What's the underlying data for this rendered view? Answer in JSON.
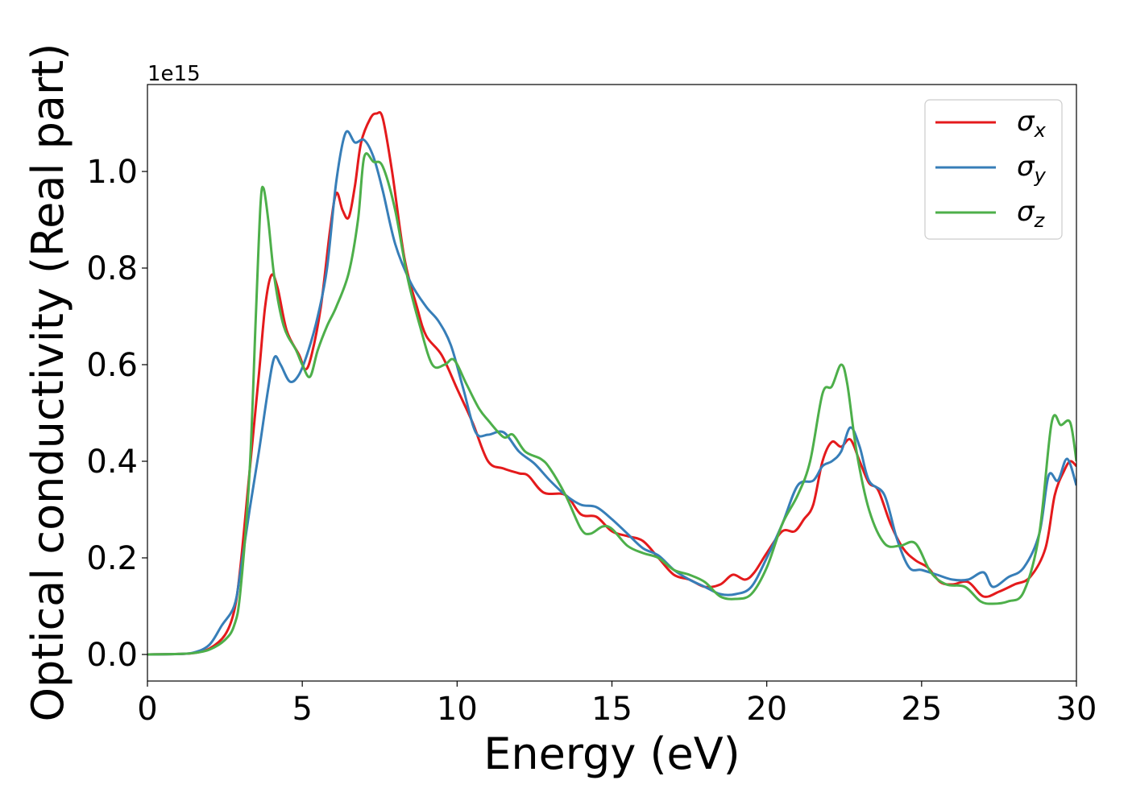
{
  "chart_data": {
    "type": "line",
    "xlabel": "Energy (eV)",
    "ylabel": "Optical conductivity (Real part)",
    "y_offset_label": "1e15",
    "xlim": [
      0,
      30
    ],
    "ylim": [
      -0.055,
      1.18
    ],
    "x_ticks": [
      0,
      5,
      10,
      15,
      20,
      25,
      30
    ],
    "y_ticks": [
      0.0,
      0.2,
      0.4,
      0.6,
      0.8,
      1.0
    ],
    "x_tick_labels": [
      "0",
      "5",
      "10",
      "15",
      "20",
      "25",
      "30"
    ],
    "y_tick_labels": [
      "0.0",
      "0.2",
      "0.4",
      "0.6",
      "0.8",
      "1.0"
    ],
    "grid": false,
    "legend_position": "top-right",
    "series": [
      {
        "name": "σx",
        "symbol": "σ",
        "subscript": "x",
        "color": "#e41a1c",
        "points": [
          [
            0,
            0
          ],
          [
            1,
            0.001
          ],
          [
            1.5,
            0.003
          ],
          [
            2,
            0.012
          ],
          [
            2.5,
            0.04
          ],
          [
            2.8,
            0.09
          ],
          [
            3,
            0.18
          ],
          [
            3.3,
            0.38
          ],
          [
            3.6,
            0.58
          ],
          [
            3.8,
            0.72
          ],
          [
            4.0,
            0.785
          ],
          [
            4.2,
            0.76
          ],
          [
            4.5,
            0.67
          ],
          [
            4.9,
            0.62
          ],
          [
            5.1,
            0.59
          ],
          [
            5.3,
            0.62
          ],
          [
            5.6,
            0.72
          ],
          [
            5.9,
            0.88
          ],
          [
            6.1,
            0.955
          ],
          [
            6.3,
            0.92
          ],
          [
            6.5,
            0.905
          ],
          [
            6.7,
            0.97
          ],
          [
            6.9,
            1.06
          ],
          [
            7.2,
            1.11
          ],
          [
            7.4,
            1.12
          ],
          [
            7.6,
            1.11
          ],
          [
            7.9,
            1.0
          ],
          [
            8.3,
            0.82
          ],
          [
            8.7,
            0.72
          ],
          [
            9.0,
            0.66
          ],
          [
            9.5,
            0.62
          ],
          [
            10,
            0.55
          ],
          [
            10.5,
            0.48
          ],
          [
            11,
            0.4
          ],
          [
            11.5,
            0.385
          ],
          [
            12,
            0.375
          ],
          [
            12.3,
            0.37
          ],
          [
            12.8,
            0.335
          ],
          [
            13.5,
            0.33
          ],
          [
            14,
            0.29
          ],
          [
            14.5,
            0.285
          ],
          [
            15,
            0.255
          ],
          [
            15.5,
            0.245
          ],
          [
            16,
            0.235
          ],
          [
            16.5,
            0.2
          ],
          [
            17,
            0.165
          ],
          [
            17.5,
            0.155
          ],
          [
            18,
            0.14
          ],
          [
            18.5,
            0.145
          ],
          [
            18.9,
            0.165
          ],
          [
            19.3,
            0.155
          ],
          [
            19.6,
            0.17
          ],
          [
            20,
            0.21
          ],
          [
            20.5,
            0.255
          ],
          [
            20.9,
            0.255
          ],
          [
            21.2,
            0.28
          ],
          [
            21.5,
            0.31
          ],
          [
            21.8,
            0.4
          ],
          [
            22.1,
            0.44
          ],
          [
            22.4,
            0.43
          ],
          [
            22.7,
            0.445
          ],
          [
            23,
            0.4
          ],
          [
            23.3,
            0.355
          ],
          [
            23.6,
            0.34
          ],
          [
            24,
            0.27
          ],
          [
            24.4,
            0.22
          ],
          [
            24.8,
            0.195
          ],
          [
            25.2,
            0.18
          ],
          [
            25.6,
            0.15
          ],
          [
            26.0,
            0.145
          ],
          [
            26.5,
            0.15
          ],
          [
            27.0,
            0.12
          ],
          [
            27.5,
            0.13
          ],
          [
            28,
            0.145
          ],
          [
            28.5,
            0.16
          ],
          [
            29,
            0.22
          ],
          [
            29.3,
            0.33
          ],
          [
            29.6,
            0.38
          ],
          [
            29.8,
            0.4
          ],
          [
            30,
            0.39
          ]
        ]
      },
      {
        "name": "σy",
        "symbol": "σ",
        "subscript": "y",
        "color": "#377eb8",
        "points": [
          [
            0,
            0
          ],
          [
            1,
            0.001
          ],
          [
            1.5,
            0.004
          ],
          [
            2,
            0.02
          ],
          [
            2.4,
            0.06
          ],
          [
            2.8,
            0.1
          ],
          [
            3,
            0.17
          ],
          [
            3.3,
            0.3
          ],
          [
            3.6,
            0.42
          ],
          [
            3.9,
            0.55
          ],
          [
            4.1,
            0.615
          ],
          [
            4.3,
            0.6
          ],
          [
            4.6,
            0.565
          ],
          [
            4.9,
            0.58
          ],
          [
            5.2,
            0.63
          ],
          [
            5.5,
            0.7
          ],
          [
            5.8,
            0.8
          ],
          [
            6.1,
            0.98
          ],
          [
            6.4,
            1.08
          ],
          [
            6.7,
            1.06
          ],
          [
            7.0,
            1.065
          ],
          [
            7.3,
            1.03
          ],
          [
            7.6,
            0.96
          ],
          [
            8.0,
            0.85
          ],
          [
            8.5,
            0.77
          ],
          [
            9.0,
            0.72
          ],
          [
            9.4,
            0.69
          ],
          [
            9.8,
            0.64
          ],
          [
            10.2,
            0.55
          ],
          [
            10.6,
            0.46
          ],
          [
            11,
            0.455
          ],
          [
            11.5,
            0.46
          ],
          [
            12,
            0.42
          ],
          [
            12.5,
            0.395
          ],
          [
            13,
            0.36
          ],
          [
            13.5,
            0.33
          ],
          [
            14,
            0.31
          ],
          [
            14.5,
            0.305
          ],
          [
            15,
            0.28
          ],
          [
            15.5,
            0.25
          ],
          [
            16,
            0.22
          ],
          [
            16.5,
            0.205
          ],
          [
            17,
            0.175
          ],
          [
            17.5,
            0.155
          ],
          [
            18,
            0.14
          ],
          [
            18.5,
            0.125
          ],
          [
            19,
            0.125
          ],
          [
            19.5,
            0.14
          ],
          [
            20,
            0.2
          ],
          [
            20.5,
            0.27
          ],
          [
            21,
            0.35
          ],
          [
            21.5,
            0.36
          ],
          [
            21.8,
            0.39
          ],
          [
            22.1,
            0.4
          ],
          [
            22.4,
            0.42
          ],
          [
            22.7,
            0.47
          ],
          [
            23,
            0.43
          ],
          [
            23.3,
            0.36
          ],
          [
            23.8,
            0.33
          ],
          [
            24.2,
            0.24
          ],
          [
            24.6,
            0.18
          ],
          [
            25,
            0.175
          ],
          [
            25.5,
            0.165
          ],
          [
            26,
            0.155
          ],
          [
            26.5,
            0.155
          ],
          [
            27,
            0.17
          ],
          [
            27.3,
            0.14
          ],
          [
            27.8,
            0.16
          ],
          [
            28.3,
            0.18
          ],
          [
            28.8,
            0.25
          ],
          [
            29.1,
            0.37
          ],
          [
            29.4,
            0.36
          ],
          [
            29.7,
            0.405
          ],
          [
            30,
            0.35
          ]
        ]
      },
      {
        "name": "σz",
        "symbol": "σ",
        "subscript": "z",
        "color": "#4daf4a",
        "points": [
          [
            0,
            0
          ],
          [
            1,
            0.001
          ],
          [
            1.5,
            0.003
          ],
          [
            2,
            0.01
          ],
          [
            2.5,
            0.03
          ],
          [
            2.8,
            0.06
          ],
          [
            3,
            0.13
          ],
          [
            3.3,
            0.38
          ],
          [
            3.5,
            0.7
          ],
          [
            3.65,
            0.93
          ],
          [
            3.75,
            0.965
          ],
          [
            3.9,
            0.9
          ],
          [
            4.1,
            0.78
          ],
          [
            4.4,
            0.68
          ],
          [
            4.8,
            0.63
          ],
          [
            5.0,
            0.6
          ],
          [
            5.25,
            0.575
          ],
          [
            5.5,
            0.63
          ],
          [
            5.8,
            0.68
          ],
          [
            6.1,
            0.72
          ],
          [
            6.5,
            0.79
          ],
          [
            6.8,
            0.9
          ],
          [
            7.0,
            1.03
          ],
          [
            7.3,
            1.02
          ],
          [
            7.6,
            1.01
          ],
          [
            8.0,
            0.92
          ],
          [
            8.4,
            0.78
          ],
          [
            8.8,
            0.68
          ],
          [
            9.2,
            0.6
          ],
          [
            9.6,
            0.6
          ],
          [
            9.9,
            0.61
          ],
          [
            10.3,
            0.56
          ],
          [
            10.7,
            0.51
          ],
          [
            11,
            0.485
          ],
          [
            11.5,
            0.45
          ],
          [
            11.8,
            0.455
          ],
          [
            12.2,
            0.42
          ],
          [
            12.7,
            0.405
          ],
          [
            13,
            0.385
          ],
          [
            13.5,
            0.33
          ],
          [
            14,
            0.26
          ],
          [
            14.3,
            0.25
          ],
          [
            14.7,
            0.265
          ],
          [
            15.0,
            0.26
          ],
          [
            15.5,
            0.225
          ],
          [
            16,
            0.21
          ],
          [
            16.5,
            0.2
          ],
          [
            17,
            0.175
          ],
          [
            17.5,
            0.165
          ],
          [
            18,
            0.15
          ],
          [
            18.5,
            0.12
          ],
          [
            19,
            0.115
          ],
          [
            19.5,
            0.125
          ],
          [
            20,
            0.18
          ],
          [
            20.5,
            0.27
          ],
          [
            21,
            0.33
          ],
          [
            21.4,
            0.4
          ],
          [
            21.8,
            0.54
          ],
          [
            22.1,
            0.555
          ],
          [
            22.4,
            0.6
          ],
          [
            22.6,
            0.56
          ],
          [
            22.9,
            0.42
          ],
          [
            23.3,
            0.3
          ],
          [
            23.8,
            0.23
          ],
          [
            24.3,
            0.225
          ],
          [
            24.8,
            0.23
          ],
          [
            25.3,
            0.17
          ],
          [
            25.8,
            0.145
          ],
          [
            26.4,
            0.14
          ],
          [
            26.9,
            0.11
          ],
          [
            27.3,
            0.105
          ],
          [
            27.8,
            0.11
          ],
          [
            28.3,
            0.13
          ],
          [
            28.8,
            0.25
          ],
          [
            29.2,
            0.48
          ],
          [
            29.5,
            0.475
          ],
          [
            29.8,
            0.48
          ],
          [
            30,
            0.4
          ]
        ]
      }
    ]
  }
}
